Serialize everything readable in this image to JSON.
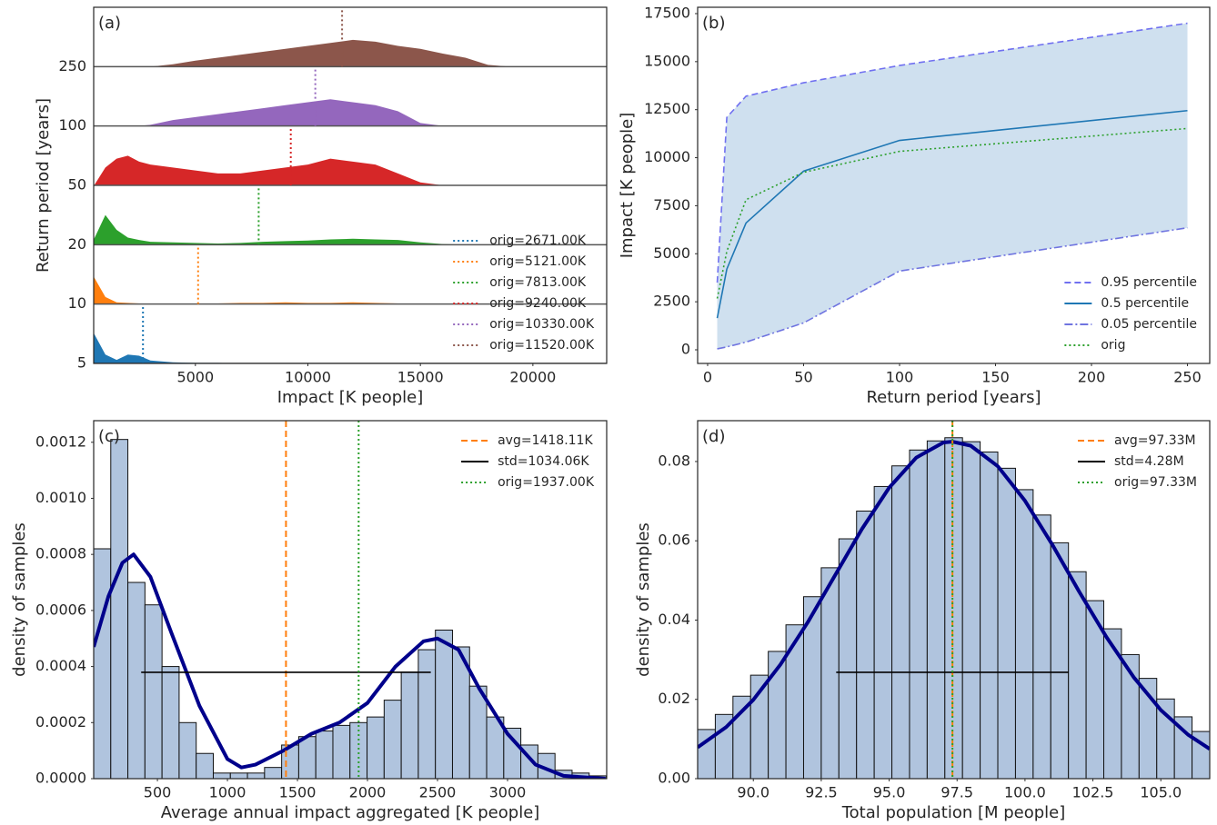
{
  "chart_data": [
    {
      "type": "ridgeline",
      "label": "(a)",
      "xlabel": "Impact [K people]",
      "ylabel": "Return period [years]",
      "categories": [
        "5",
        "10",
        "20",
        "50",
        "100",
        "250"
      ],
      "x": [
        500,
        1000,
        1500,
        2000,
        2500,
        3000,
        4000,
        5000,
        6000,
        7000,
        8000,
        9000,
        10000,
        11000,
        12000,
        13000,
        14000,
        15000,
        16000,
        17000,
        18000,
        19000,
        20000,
        21000,
        22000,
        23000
      ],
      "series": [
        {
          "name": "orig=2671.00K",
          "orig": 2671,
          "color": "#1f77b4",
          "values": [
            0.5,
            0.15,
            0.06,
            0.15,
            0.13,
            0.05,
            0.02,
            0.01,
            0.01,
            0,
            0,
            0,
            0,
            0,
            0,
            0,
            0,
            0,
            0,
            0,
            0,
            0,
            0,
            0,
            0,
            0
          ]
        },
        {
          "name": "orig=5121.00K",
          "orig": 5121,
          "color": "#ff7f0e",
          "values": [
            0.45,
            0.12,
            0.03,
            0.02,
            0.01,
            0.01,
            0.01,
            0.01,
            0.01,
            0.02,
            0.02,
            0.03,
            0.02,
            0.02,
            0.03,
            0.02,
            0.01,
            0,
            0,
            0,
            0,
            0,
            0,
            0,
            0,
            0
          ]
        },
        {
          "name": "orig=7813.00K",
          "orig": 7813,
          "color": "#2ca02c",
          "values": [
            0.1,
            0.5,
            0.25,
            0.12,
            0.08,
            0.05,
            0.04,
            0.03,
            0.02,
            0.03,
            0.05,
            0.06,
            0.07,
            0.09,
            0.1,
            0.09,
            0.08,
            0.04,
            0.01,
            0,
            0,
            0,
            0,
            0,
            0,
            0
          ]
        },
        {
          "name": "orig=9240.00K",
          "orig": 9240,
          "color": "#d62728",
          "values": [
            0,
            0.3,
            0.45,
            0.5,
            0.4,
            0.35,
            0.3,
            0.25,
            0.2,
            0.2,
            0.25,
            0.3,
            0.35,
            0.45,
            0.4,
            0.35,
            0.2,
            0.05,
            0,
            0,
            0,
            0,
            0,
            0,
            0,
            0
          ]
        },
        {
          "name": "orig=10330.00K",
          "orig": 10330,
          "color": "#9467bd",
          "values": [
            0,
            0,
            0,
            0,
            0,
            0.02,
            0.1,
            0.15,
            0.2,
            0.25,
            0.3,
            0.35,
            0.4,
            0.45,
            0.4,
            0.35,
            0.25,
            0.05,
            0,
            0,
            0,
            0,
            0,
            0,
            0,
            0
          ]
        },
        {
          "name": "orig=11520.00K",
          "orig": 11520,
          "color": "#8c564b",
          "values": [
            0,
            0,
            0,
            0,
            0,
            0,
            0.04,
            0.1,
            0.15,
            0.2,
            0.25,
            0.3,
            0.35,
            0.4,
            0.45,
            0.42,
            0.35,
            0.3,
            0.22,
            0.15,
            0.03,
            0,
            0,
            0,
            0,
            0
          ]
        }
      ],
      "xlim": [
        480,
        23280
      ],
      "xticks": [
        5000,
        10000,
        15000,
        20000
      ],
      "legend": "lower right"
    },
    {
      "type": "line",
      "label": "(b)",
      "xlabel": "Return period [years]",
      "ylabel": "Impact [K people]",
      "x": [
        5,
        10,
        20,
        50,
        100,
        250
      ],
      "series": [
        {
          "name": "0.95 percentile",
          "color": "#7070f0",
          "style": "dashed",
          "values": [
            3500,
            12100,
            13200,
            13900,
            14800,
            17000
          ]
        },
        {
          "name": "0.5 percentile",
          "color": "#1f77b4",
          "style": "solid",
          "values": [
            1650,
            4200,
            6600,
            9300,
            10900,
            12450
          ]
        },
        {
          "name": "0.05 percentile",
          "color": "#6f74e0",
          "style": "dashdot",
          "values": [
            50,
            150,
            400,
            1400,
            4100,
            6350
          ]
        },
        {
          "name": "orig",
          "color": "#2ca02c",
          "style": "dotted",
          "values": [
            2671,
            5121,
            7813,
            9240,
            10330,
            11520
          ]
        }
      ],
      "band_color": "#cfe0ef",
      "xlim": [
        -5.2,
        261.6
      ],
      "xticks": [
        0,
        50,
        100,
        150,
        200,
        250
      ],
      "ylim": [
        -710,
        17830
      ],
      "yticks": [
        0,
        2500,
        5000,
        7500,
        10000,
        12500,
        15000,
        17500
      ],
      "legend": "lower right"
    },
    {
      "type": "histogram",
      "label": "(c)",
      "xlabel": "Average annual impact aggregated [K people]",
      "ylabel": "density of samples",
      "bins": [
        45,
        167,
        289,
        411,
        533,
        655,
        777,
        899,
        1021,
        1143,
        1265,
        1387,
        1509,
        1631,
        1753,
        1875,
        1997,
        2119,
        2241,
        2363,
        2485,
        2607,
        2729,
        2851,
        2973,
        3095,
        3217,
        3339,
        3461,
        3583,
        3705
      ],
      "values": [
        0.00082,
        0.00121,
        0.0007,
        0.00062,
        0.0004,
        0.0002,
        9e-05,
        2e-05,
        2e-05,
        2e-05,
        4e-05,
        0.00012,
        0.00015,
        0.00017,
        0.00019,
        0.0002,
        0.00022,
        0.00028,
        0.00038,
        0.00046,
        0.00053,
        0.00047,
        0.00033,
        0.00022,
        0.00018,
        0.00012,
        9e-05,
        3e-05,
        2e-05,
        1e-05
      ],
      "color": "#b0c4de",
      "kde": {
        "color": "#00008b",
        "x": [
          45,
          150,
          250,
          330,
          450,
          600,
          800,
          1000,
          1100,
          1200,
          1400,
          1600,
          1800,
          2000,
          2200,
          2400,
          2500,
          2650,
          2800,
          3000,
          3200,
          3400,
          3700
        ],
        "values": [
          0.00047,
          0.00065,
          0.00077,
          0.0008,
          0.00072,
          0.00052,
          0.00026,
          7e-05,
          4e-05,
          5e-05,
          0.0001,
          0.00016,
          0.0002,
          0.00027,
          0.0004,
          0.00049,
          0.0005,
          0.00046,
          0.00032,
          0.00016,
          5e-05,
          1e-05,
          0
        ]
      },
      "ref_lines": [
        {
          "role": "avg",
          "name": "avg=1418.11K",
          "value": 1418.11,
          "color": "#ff7f0e",
          "style": "dashed"
        },
        {
          "role": "std",
          "name": "std=1034.06K",
          "value": 1034.06,
          "color": "#000000",
          "style": "solid"
        },
        {
          "role": "orig",
          "name": "orig=1937.00K",
          "value": 1937,
          "color": "#2ca02c",
          "style": "dotted"
        }
      ],
      "xlim": [
        45,
        3708
      ],
      "xticks": [
        500,
        1000,
        1500,
        2000,
        2500,
        3000
      ],
      "ylim": [
        0,
        0.001277
      ],
      "yticks": [
        {
          "value": 0,
          "label": "0.0000"
        },
        {
          "value": 0.0002,
          "label": "0.0002"
        },
        {
          "value": 0.0004,
          "label": "0.0004"
        },
        {
          "value": 0.0006,
          "label": "0.0006"
        },
        {
          "value": 0.0008,
          "label": "0.0008"
        },
        {
          "value": 0.001,
          "label": "0.0010"
        },
        {
          "value": 0.0012,
          "label": "0.0012"
        }
      ],
      "legend": "upper right"
    },
    {
      "type": "histogram",
      "label": "(d)",
      "xlabel": "Total population [M people]",
      "ylabel": "density of samples",
      "bins": [
        87.95,
        88.6,
        89.25,
        89.9,
        90.55,
        91.2,
        91.85,
        92.5,
        93.15,
        93.8,
        94.45,
        95.1,
        95.75,
        96.4,
        97.05,
        97.7,
        98.35,
        99.0,
        99.65,
        100.3,
        100.95,
        101.6,
        102.25,
        102.9,
        103.55,
        104.2,
        104.85,
        105.5,
        106.15,
        106.8
      ],
      "values": [
        0.0124,
        0.0162,
        0.0208,
        0.0261,
        0.0321,
        0.0388,
        0.0459,
        0.0532,
        0.0605,
        0.0675,
        0.0737,
        0.0789,
        0.0829,
        0.0852,
        0.086,
        0.085,
        0.0824,
        0.0783,
        0.0729,
        0.0665,
        0.0595,
        0.0522,
        0.0449,
        0.0378,
        0.0313,
        0.0253,
        0.0201,
        0.0156,
        0.0119
      ],
      "color": "#b0c4de",
      "kde": {
        "color": "#00008b",
        "x": [
          87.95,
          89,
          90,
          91,
          92,
          93,
          94,
          95,
          96,
          97,
          97.33,
          98,
          99,
          100,
          101,
          102,
          103,
          104,
          105,
          106,
          106.8
        ],
        "values": [
          0.0079,
          0.013,
          0.0199,
          0.0288,
          0.0394,
          0.0512,
          0.063,
          0.0734,
          0.081,
          0.0848,
          0.085,
          0.084,
          0.0788,
          0.0701,
          0.0591,
          0.0471,
          0.0357,
          0.0256,
          0.0173,
          0.0111,
          0.0075
        ]
      },
      "ref_lines": [
        {
          "role": "avg",
          "name": "avg=97.33M",
          "value": 97.33,
          "color": "#ff7f0e",
          "style": "dashed"
        },
        {
          "role": "std",
          "name": "std=4.28M",
          "value": 4.28,
          "color": "#000000",
          "style": "solid"
        },
        {
          "role": "orig",
          "name": "orig=97.33M",
          "value": 97.33,
          "color": "#2ca02c",
          "style": "dotted"
        }
      ],
      "xlim": [
        87.95,
        106.8
      ],
      "xticks": [
        {
          "value": 90,
          "label": "90.0"
        },
        92.5,
        {
          "value": 95,
          "label": "95.0"
        },
        97.5,
        {
          "value": 100,
          "label": "100.0"
        },
        102.5,
        {
          "value": 105,
          "label": "105.0"
        }
      ],
      "ylim": [
        0,
        0.0903
      ],
      "yticks": [
        {
          "value": 0,
          "label": "0.00"
        },
        0.02,
        0.04,
        0.06,
        0.08
      ],
      "legend": "upper right"
    }
  ]
}
